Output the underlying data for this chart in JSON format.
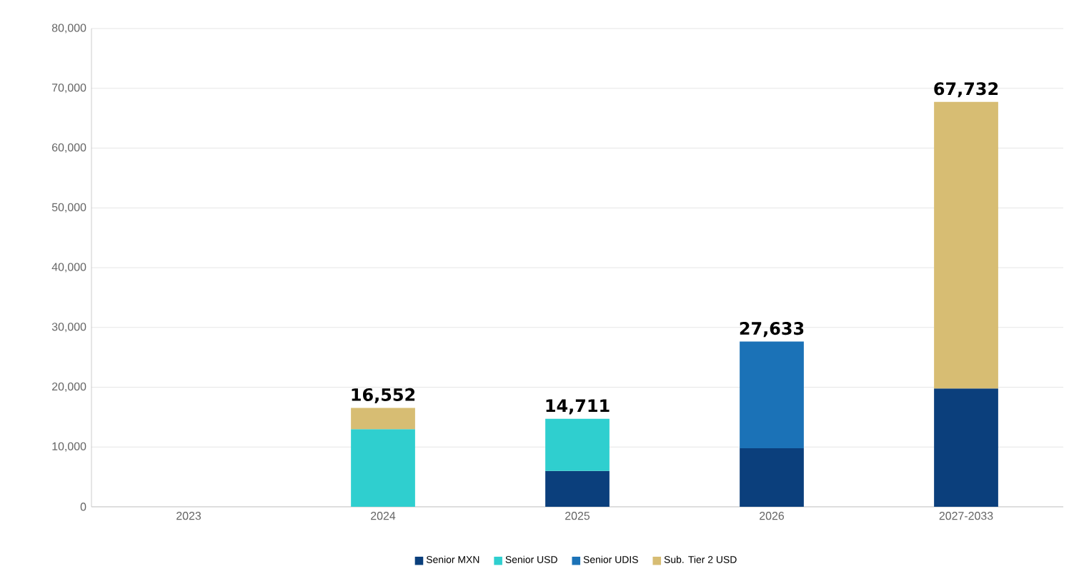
{
  "chart_data": {
    "type": "bar",
    "stacked": true,
    "categories": [
      "2023",
      "2024",
      "2025",
      "2026",
      "2027-2033"
    ],
    "series": [
      {
        "name": "Senior MXN",
        "color": "#0b3f7c",
        "values": [
          null,
          null,
          6000,
          9800,
          19800
        ]
      },
      {
        "name": "Senior USD",
        "color": "#2fcfcf",
        "values": [
          null,
          13000,
          8711,
          null,
          null
        ]
      },
      {
        "name": "Senior UDIS",
        "color": "#1b72b7",
        "values": [
          null,
          null,
          null,
          17833,
          null
        ]
      },
      {
        "name": "Sub. Tier 2 USD",
        "color": "#d7bd73",
        "values": [
          null,
          3552,
          null,
          null,
          47932
        ]
      }
    ],
    "totals": [
      null,
      "16,552",
      "14,711",
      "27,633",
      "67,732"
    ],
    "ylim": [
      0,
      80000
    ],
    "yticks": [
      0,
      {
        "value": 10000,
        "label": "10,000"
      },
      {
        "value": 20000,
        "label": "20,000"
      },
      {
        "value": 30000,
        "label": "30,000"
      },
      {
        "value": 40000,
        "label": "40,000"
      },
      {
        "value": 50000,
        "label": "50,000"
      },
      {
        "value": 60000,
        "label": "60,000"
      },
      {
        "value": 70000,
        "label": "70,000"
      },
      {
        "value": 80000,
        "label": "80,000"
      }
    ],
    "grid": "y",
    "legend": "bottom"
  }
}
